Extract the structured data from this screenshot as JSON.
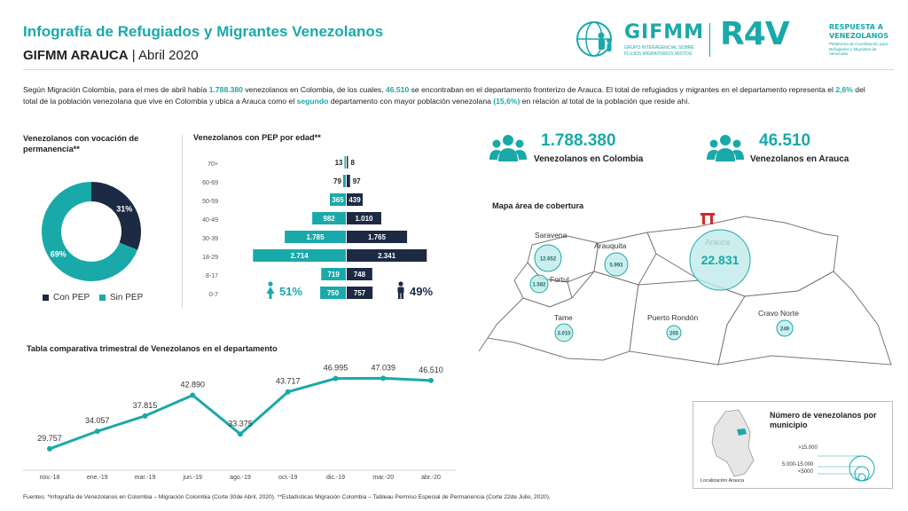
{
  "header": {
    "title": "Infografía de Refugiados y Migrantes Venezolanos",
    "org": "GIFMM ARAUCA",
    "period": "| Abril 2020",
    "gifmm_logo": "GIFMM",
    "gifmm_sub1": "GRUPO INTERAGENCIAL SOBRE",
    "gifmm_sub2": "FLUJOS MIGRATORIOS MIXTOS",
    "r4v_logo": "R4V",
    "r4v_line1": "RESPUESTA A",
    "r4v_line2": "VENEZOLANOS",
    "r4v_small": "Plataforma de Coordinación para Refugiados y Migrantes de Venezuela"
  },
  "intro": {
    "p1": "Según Migración Colombia, para el mes de abril había ",
    "v1": "1.788.380",
    "p2": " venezolanos en Colombia, de los cuales, ",
    "v2": "46.510",
    "p3": " se encontraban en el departamento fronterizo de Arauca. El total de refugiados y migrantes en el departamento representa el ",
    "v3": "2,6%",
    "p4": " del total de la población venezolana que vive en Colombia y ubica a Arauca como el ",
    "v4": "segundo",
    "p5": " departamento con mayor población venezolana ",
    "v5": "(15,6%)",
    "p6": " en relación al total de la población que reside ahí."
  },
  "donut": {
    "heading": "Venezolanos con vocación de permanencia**",
    "legend": [
      "Con PEP",
      "Sin PEP"
    ]
  },
  "pyramid": {
    "heading": "Venezolanos con PEP por edad**",
    "female_pct": "51%",
    "male_pct": "49%"
  },
  "stats": {
    "colombia_value": "1.788.380",
    "colombia_label": "Venezolanos en Colombia",
    "arauca_value": "46.510",
    "arauca_label": "Venezolanos en Arauca"
  },
  "map": {
    "heading": "Mapa área de cobertura",
    "municipalities": [
      {
        "name": "Saravena",
        "value": "12.652"
      },
      {
        "name": "Arauquita",
        "value": "5.993"
      },
      {
        "name": "Arauca",
        "value": "22.831"
      },
      {
        "name": "Fortul",
        "value": "1.582"
      },
      {
        "name": "Tame",
        "value": "3.010"
      },
      {
        "name": "Puerto Rondón",
        "value": "205"
      },
      {
        "name": "Cravo Norte",
        "value": "249"
      }
    ],
    "inset_title": "Número de venezolanos por municipio",
    "inset_legend": [
      ">15.000",
      "5.000-15.000",
      "<5000"
    ],
    "inset_caption": "Localización Arauca"
  },
  "line": {
    "heading": "Tabla comparativa trimestral de Venezolanos en el departamento"
  },
  "footer": {
    "text": "Fuentes: *Infografía de Venezolanos en Colombia – Migración Colombia (Corte 30de Abril, 2020). **Estadísticas Migración Colombia – Tableau Permiso Especial de Permanencia (Corte 22de Julio, 2020)."
  },
  "colors": {
    "teal": "#1aa9a9",
    "navy": "#1c2a44",
    "map_fill": "#ffffff",
    "map_stroke": "#777777",
    "bubble": "#bfeaea"
  },
  "chart_data": [
    {
      "type": "pie",
      "categories": [
        "Con PEP",
        "Sin PEP"
      ],
      "values": [
        31,
        69
      ],
      "labels": [
        "31%",
        "69%"
      ],
      "colors": [
        "#1c2a44",
        "#1aa9a9"
      ]
    },
    {
      "type": "bar",
      "categories": [
        "70+",
        "60-69",
        "50-59",
        "40-49",
        "30-39",
        "18-29",
        "8-17",
        "0-7"
      ],
      "series": [
        {
          "name": "Mujeres",
          "values": [
            13,
            79,
            365,
            982,
            1785,
            2714,
            719,
            750
          ],
          "labels": [
            "13",
            "79",
            "365",
            "982",
            "1.785",
            "2.714",
            "719",
            "750"
          ]
        },
        {
          "name": "Hombres",
          "values": [
            8,
            97,
            439,
            1010,
            1765,
            2341,
            748,
            757
          ],
          "labels": [
            "8",
            "97",
            "439",
            "1.010",
            "1.765",
            "2.341",
            "748",
            "757"
          ]
        }
      ]
    },
    {
      "type": "line",
      "categories": [
        "nov.-18",
        "ene.-19",
        "mar.-19",
        "jun.-19",
        "ago.-19",
        "oct.-19",
        "dic.-19",
        "mar.-20",
        "abr.-20"
      ],
      "values": [
        29757,
        34057,
        37815,
        42890,
        33375,
        43717,
        46995,
        47039,
        46510
      ],
      "labels": [
        "29.757",
        "34.057",
        "37.815",
        "42.890",
        "33.375",
        "43.717",
        "46.995",
        "47.039",
        "46.510"
      ]
    }
  ]
}
